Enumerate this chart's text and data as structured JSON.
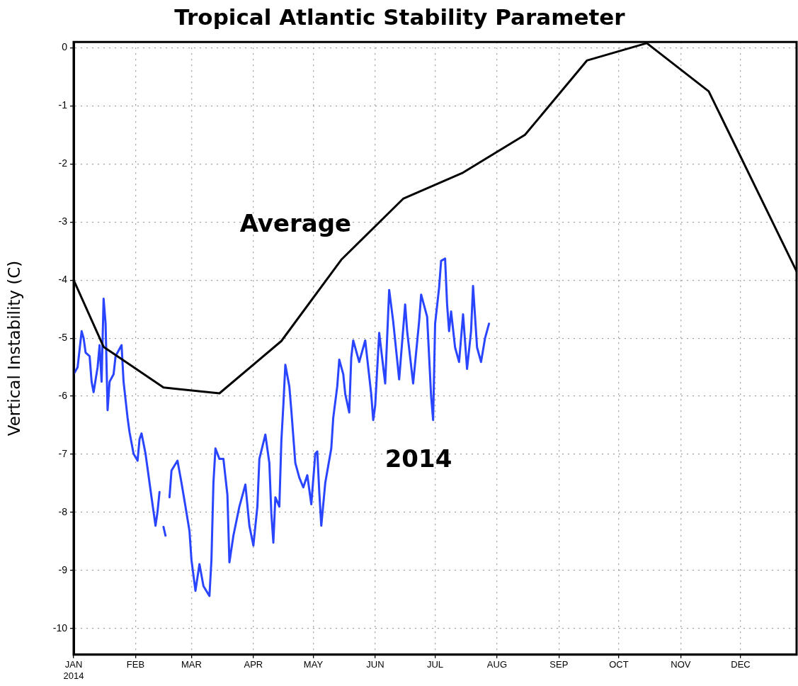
{
  "chart_data": {
    "type": "line",
    "title": "Tropical Atlantic Stability Parameter",
    "ylabel": "Vertical Instability (C)",
    "xlim": [
      "2014-01-01",
      "2014-12-29"
    ],
    "xticks": [
      {
        "value": "2014-01-01",
        "label": "JAN\n2014"
      },
      {
        "value": "2014-02-01",
        "label": "FEB"
      },
      {
        "value": "2014-03-01",
        "label": "MAR"
      },
      {
        "value": "2014-04-01",
        "label": "APR"
      },
      {
        "value": "2014-05-01",
        "label": "MAY"
      },
      {
        "value": "2014-06-01",
        "label": "JUN"
      },
      {
        "value": "2014-07-01",
        "label": "JUL"
      },
      {
        "value": "2014-08-01",
        "label": "AUG"
      },
      {
        "value": "2014-09-01",
        "label": "SEP"
      },
      {
        "value": "2014-10-01",
        "label": "OCT"
      },
      {
        "value": "2014-11-01",
        "label": "NOV"
      },
      {
        "value": "2014-12-01",
        "label": "DEC"
      }
    ],
    "ylim": [
      -10.45,
      0.1
    ],
    "yticks": [
      0,
      -1,
      -2,
      -3,
      -4,
      -5,
      -6,
      -7,
      -8,
      -9,
      -10
    ],
    "grid": true,
    "marker": "none",
    "line_style": "solid",
    "series": [
      {
        "name": "Average",
        "color": "#000000",
        "x": [
          "2014-01-01",
          "2014-01-16",
          "2014-02-15",
          "2014-03-15",
          "2014-04-15",
          "2014-05-15",
          "2014-06-15",
          "2014-07-15",
          "2014-08-15",
          "2014-09-15",
          "2014-10-15",
          "2014-11-15",
          "2014-12-29"
        ],
        "values": [
          -4.0,
          -5.15,
          -5.85,
          -5.95,
          -5.05,
          -3.65,
          -2.6,
          -2.15,
          -1.5,
          -0.22,
          0.08,
          -0.75,
          -3.85
        ]
      },
      {
        "name": "2014",
        "color": "#2a45ff",
        "x": [
          "2014-01-01",
          "2014-01-03",
          "2014-01-05",
          "2014-01-06",
          "2014-01-07",
          "2014-01-09",
          "2014-01-10",
          "2014-01-11",
          "2014-01-13",
          "2014-01-14",
          "2014-01-15",
          "2014-01-16",
          "2014-01-17",
          "2014-01-18",
          "2014-01-19",
          "2014-01-21",
          "2014-01-22",
          "2014-01-25",
          "2014-01-26",
          "2014-01-28",
          "2014-01-29",
          "2014-01-31",
          "2014-02-02",
          "2014-02-03",
          "2014-02-04",
          "2014-02-06",
          "2014-02-08",
          "2014-02-09",
          "2014-02-11",
          "2014-02-12",
          "2014-02-13",
          "2014-02-14",
          "2014-02-15",
          "2014-02-16",
          "2014-02-17",
          "2014-02-18",
          "2014-02-19",
          "2014-02-22",
          "2014-02-24",
          "2014-02-26",
          "2014-02-28",
          "2014-03-01",
          "2014-03-03",
          "2014-03-05",
          "2014-03-07",
          "2014-03-10",
          "2014-03-11",
          "2014-03-12",
          "2014-03-13",
          "2014-03-15",
          "2014-03-17",
          "2014-03-19",
          "2014-03-20",
          "2014-03-22",
          "2014-03-25",
          "2014-03-28",
          "2014-03-30",
          "2014-04-01",
          "2014-04-03",
          "2014-04-04",
          "2014-04-07",
          "2014-04-09",
          "2014-04-10",
          "2014-04-11",
          "2014-04-12",
          "2014-04-14",
          "2014-04-15",
          "2014-04-16",
          "2014-04-17",
          "2014-04-19",
          "2014-04-20",
          "2014-04-22",
          "2014-04-24",
          "2014-04-26",
          "2014-04-28",
          "2014-04-30",
          "2014-05-02",
          "2014-05-03",
          "2014-05-04",
          "2014-05-05",
          "2014-05-07",
          "2014-05-10",
          "2014-05-11",
          "2014-05-13",
          "2014-05-14",
          "2014-05-16",
          "2014-05-17",
          "2014-05-19",
          "2014-05-20",
          "2014-05-21",
          "2014-05-24",
          "2014-05-27",
          "2014-05-30",
          "2014-05-31",
          "2014-06-01",
          "2014-06-03",
          "2014-06-06",
          "2014-06-08",
          "2014-06-10",
          "2014-06-13",
          "2014-06-16",
          "2014-06-17",
          "2014-06-20",
          "2014-06-23",
          "2014-06-24",
          "2014-06-27",
          "2014-06-29",
          "2014-06-30",
          "2014-07-01",
          "2014-07-03",
          "2014-07-04",
          "2014-07-06",
          "2014-07-07",
          "2014-07-08",
          "2014-07-09",
          "2014-07-11",
          "2014-07-13",
          "2014-07-15",
          "2014-07-17",
          "2014-07-19",
          "2014-07-20",
          "2014-07-22",
          "2014-07-24",
          "2014-07-26",
          "2014-07-28"
        ],
        "values": [
          -5.62,
          -5.5,
          -4.88,
          -5.0,
          -5.25,
          -5.31,
          -5.75,
          -5.93,
          -5.5,
          -5.12,
          -5.75,
          -4.32,
          -4.75,
          -6.24,
          -5.75,
          -5.62,
          -5.31,
          -5.12,
          -5.75,
          -6.37,
          -6.62,
          -6.99,
          -7.11,
          -6.74,
          -6.64,
          -6.99,
          -7.49,
          -7.74,
          -8.23,
          -7.99,
          -7.65,
          null,
          -8.25,
          -8.4,
          null,
          -7.74,
          -7.28,
          -7.11,
          -7.49,
          -7.9,
          -8.32,
          -8.82,
          -9.35,
          -8.89,
          -9.27,
          -9.44,
          -8.82,
          -7.49,
          -6.9,
          -7.08,
          -7.08,
          -7.7,
          -8.86,
          -8.4,
          -7.9,
          -7.52,
          -8.23,
          -8.57,
          -7.9,
          -7.08,
          -6.66,
          -7.15,
          -8.02,
          -8.52,
          -7.74,
          -7.9,
          -6.78,
          -6.16,
          -5.46,
          -5.83,
          -6.24,
          -7.15,
          -7.4,
          -7.57,
          -7.36,
          -7.86,
          -6.99,
          -6.95,
          -7.65,
          -8.23,
          -7.49,
          -6.9,
          -6.37,
          -5.83,
          -5.37,
          -5.62,
          -5.96,
          -6.28,
          -5.34,
          -5.04,
          -5.41,
          -5.04,
          -5.96,
          -6.41,
          -6.16,
          -4.91,
          -5.78,
          -4.17,
          -4.71,
          -5.71,
          -4.42,
          -4.88,
          -5.78,
          -4.71,
          -4.25,
          -4.63,
          -6.0,
          -6.41,
          -4.75,
          -4.13,
          -3.67,
          -3.63,
          -4.42,
          -4.88,
          -4.54,
          -5.16,
          -5.41,
          -4.59,
          -5.53,
          -4.88,
          -4.1,
          -5.16,
          -5.41,
          -5.0,
          -4.75
        ]
      }
    ],
    "legend": false
  }
}
